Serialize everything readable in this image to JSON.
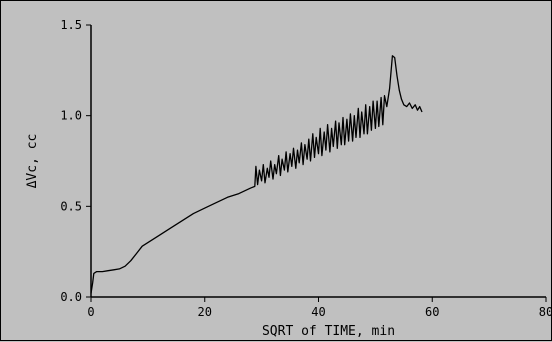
{
  "chart_data": {
    "type": "line",
    "title": "",
    "xlabel": "SQRT of TIME, min",
    "ylabel": "ΔVc, cc",
    "xlim": [
      0,
      80
    ],
    "ylim": [
      0,
      1.5
    ],
    "xticks": [
      0,
      20,
      40,
      60,
      80
    ],
    "yticks": [
      0.0,
      0.5,
      1.0,
      1.5
    ],
    "xtick_labels": [
      "0",
      "20",
      "40",
      "60",
      "80"
    ],
    "ytick_labels": [
      "0.0",
      "0.5",
      "1.0",
      "1.5"
    ],
    "grid": false,
    "legend": "none",
    "line_color": "#000000",
    "series": [
      {
        "x": [
          0,
          0.3,
          0.5,
          1,
          2,
          3,
          4,
          5,
          6,
          7,
          8,
          9,
          10,
          12,
          14,
          16,
          18,
          20,
          22,
          24,
          26,
          28,
          28.8,
          29.0,
          29.3,
          29.6,
          30.0,
          30.3,
          30.6,
          31.0,
          31.3,
          31.6,
          32.0,
          32.3,
          32.6,
          33.0,
          33.3,
          33.6,
          34.0,
          34.3,
          34.6,
          35.0,
          35.3,
          35.6,
          36.0,
          36.3,
          36.6,
          37.0,
          37.3,
          37.6,
          38.0,
          38.3,
          38.6,
          39.0,
          39.3,
          39.6,
          40.0,
          40.3,
          40.6,
          41.0,
          41.3,
          41.6,
          42.0,
          42.3,
          42.6,
          43.0,
          43.3,
          43.6,
          44.0,
          44.3,
          44.6,
          45.0,
          45.3,
          45.6,
          46.0,
          46.3,
          46.6,
          47.0,
          47.3,
          47.6,
          48.0,
          48.3,
          48.6,
          49.0,
          49.3,
          49.6,
          50.0,
          50.3,
          50.6,
          51.0,
          51.3,
          51.6,
          52.0,
          52.5,
          53.0,
          53.4,
          53.8,
          54.2,
          54.6,
          55.0,
          55.5,
          56.0,
          56.5,
          57.0,
          57.4,
          57.8,
          58.2
        ],
        "y": [
          0.02,
          0.08,
          0.13,
          0.14,
          0.14,
          0.145,
          0.15,
          0.155,
          0.17,
          0.2,
          0.24,
          0.28,
          0.3,
          0.34,
          0.38,
          0.42,
          0.46,
          0.49,
          0.52,
          0.55,
          0.57,
          0.6,
          0.61,
          0.72,
          0.62,
          0.7,
          0.64,
          0.73,
          0.63,
          0.71,
          0.66,
          0.75,
          0.65,
          0.73,
          0.68,
          0.78,
          0.67,
          0.76,
          0.7,
          0.8,
          0.69,
          0.79,
          0.72,
          0.82,
          0.71,
          0.81,
          0.74,
          0.85,
          0.73,
          0.84,
          0.76,
          0.87,
          0.75,
          0.9,
          0.77,
          0.88,
          0.79,
          0.93,
          0.78,
          0.91,
          0.81,
          0.95,
          0.8,
          0.93,
          0.83,
          0.97,
          0.82,
          0.96,
          0.84,
          0.99,
          0.84,
          0.98,
          0.86,
          1.01,
          0.86,
          1.0,
          0.88,
          1.04,
          0.88,
          1.02,
          0.9,
          1.06,
          0.9,
          1.05,
          0.92,
          1.08,
          0.93,
          1.08,
          0.94,
          1.1,
          0.95,
          1.11,
          1.05,
          1.15,
          1.33,
          1.32,
          1.22,
          1.14,
          1.09,
          1.06,
          1.05,
          1.07,
          1.04,
          1.06,
          1.03,
          1.05,
          1.02
        ]
      }
    ]
  }
}
